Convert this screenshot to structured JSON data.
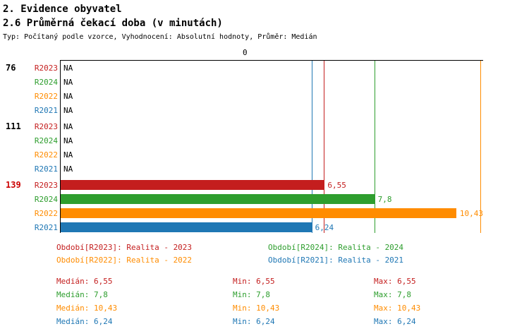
{
  "header": {
    "title_line1": "2. Evidence obyvatel",
    "title_line2": "2.6 Průměrná čekací doba (v minutách)",
    "subtitle": "Typ: Počítaný podle vzorce, Vyhodnocení: Absolutní hodnoty, Průměr: Medián"
  },
  "axis": {
    "origin_label": "0"
  },
  "colors": {
    "r2023": "#c41e1e",
    "r2024": "#2e9e2e",
    "r2022": "#ff8c00",
    "r2021": "#1f77b4",
    "highlight": "#cc0000",
    "axis": "#000000"
  },
  "chart_data": {
    "type": "bar",
    "orientation": "horizontal",
    "title": "2.6 Průměrná čekací doba (v minutách)",
    "x_min": 0,
    "x_max": 10.5,
    "series_order": [
      "R2023",
      "R2024",
      "R2022",
      "R2021"
    ],
    "groups": [
      {
        "label": "76",
        "highlight": false,
        "rows": [
          {
            "series": "R2023",
            "value": null,
            "display": "NA"
          },
          {
            "series": "R2024",
            "value": null,
            "display": "NA"
          },
          {
            "series": "R2022",
            "value": null,
            "display": "NA"
          },
          {
            "series": "R2021",
            "value": null,
            "display": "NA"
          }
        ]
      },
      {
        "label": "111",
        "highlight": false,
        "rows": [
          {
            "series": "R2023",
            "value": null,
            "display": "NA"
          },
          {
            "series": "R2024",
            "value": null,
            "display": "NA"
          },
          {
            "series": "R2022",
            "value": null,
            "display": "NA"
          },
          {
            "series": "R2021",
            "value": null,
            "display": "NA"
          }
        ]
      },
      {
        "label": "139",
        "highlight": true,
        "rows": [
          {
            "series": "R2023",
            "value": 6.55,
            "display": "6,55"
          },
          {
            "series": "R2024",
            "value": 7.8,
            "display": "7,8"
          },
          {
            "series": "R2022",
            "value": 10.43,
            "display": "10,43"
          },
          {
            "series": "R2021",
            "value": 6.24,
            "display": "6,24"
          }
        ]
      }
    ],
    "guides": [
      {
        "series": "R2021",
        "value": 6.24
      },
      {
        "series": "R2023",
        "value": 6.55
      },
      {
        "series": "R2024",
        "value": 7.8
      },
      {
        "series": "R2022",
        "value": 10.43
      }
    ]
  },
  "legend": {
    "items": [
      {
        "series": "R2023",
        "label": "Období[R2023]: Realita - 2023"
      },
      {
        "series": "R2024",
        "label": "Období[R2024]: Realita - 2024"
      },
      {
        "series": "R2022",
        "label": "Období[R2022]: Realita - 2022"
      },
      {
        "series": "R2021",
        "label": "Období[R2021]: Realita - 2021"
      }
    ]
  },
  "stats": {
    "rows": [
      {
        "series": "R2023",
        "median": "Medián: 6,55",
        "min": "Min: 6,55",
        "max": "Max: 6,55"
      },
      {
        "series": "R2024",
        "median": "Medián: 7,8",
        "min": "Min: 7,8",
        "max": "Max: 7,8"
      },
      {
        "series": "R2022",
        "median": "Medián: 10,43",
        "min": "Min: 10,43",
        "max": "Max: 10,43"
      },
      {
        "series": "R2021",
        "median": "Medián: 6,24",
        "min": "Min: 6,24",
        "max": "Max: 6,24"
      }
    ]
  }
}
